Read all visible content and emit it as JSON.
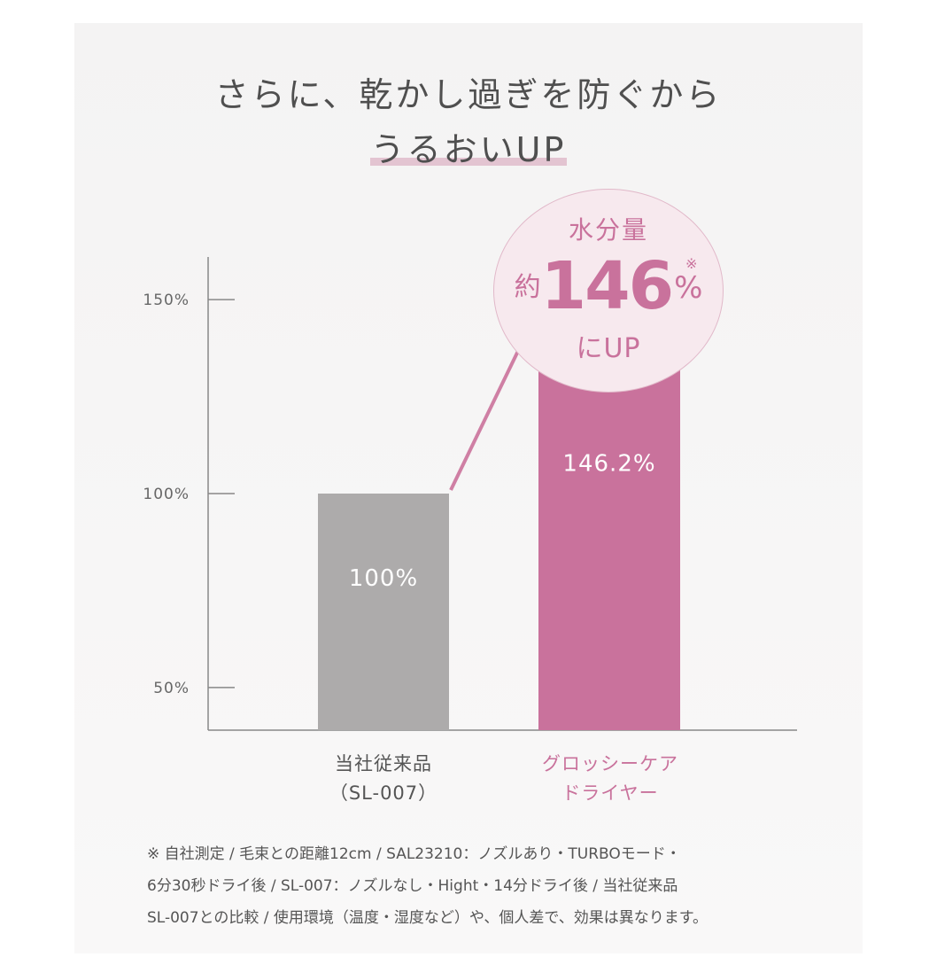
{
  "headline": {
    "line1": "さらに、乾かし過ぎを防ぐから",
    "line2": "うるおいUP"
  },
  "callout": {
    "line1": "水分量",
    "prefix": "約",
    "number": "146",
    "unit": "%",
    "note_mark": "※",
    "line3": "にUP"
  },
  "chart_data": {
    "type": "bar",
    "categories": [
      [
        "当社従来品",
        "（SL-007）"
      ],
      [
        "グロッシーケア",
        "ドライヤー"
      ]
    ],
    "values": [
      100,
      146.2
    ],
    "value_labels": [
      "100%",
      "146.2%"
    ],
    "bar_colors": [
      "#adabab",
      "#c9729c"
    ],
    "y_ticks": [
      50,
      100,
      150
    ],
    "y_tick_labels": [
      "50%",
      "100%",
      "150%"
    ],
    "ylim": [
      39,
      161
    ],
    "xlabel": "",
    "ylabel": "",
    "grid": false,
    "arrow_color": "#cf7fa4"
  },
  "footnote": [
    "※ 自社測定 / 毛束との距離12cm / SAL23210：ノズルあり・TURBOモード・",
    "6分30秒ドライ後 / SL-007：ノズルなし・Hight・14分ドライ後 / 当社従来品",
    "SL-007との比較 / 使用環境（温度・湿度など）や、個人差で、効果は異なります。"
  ]
}
